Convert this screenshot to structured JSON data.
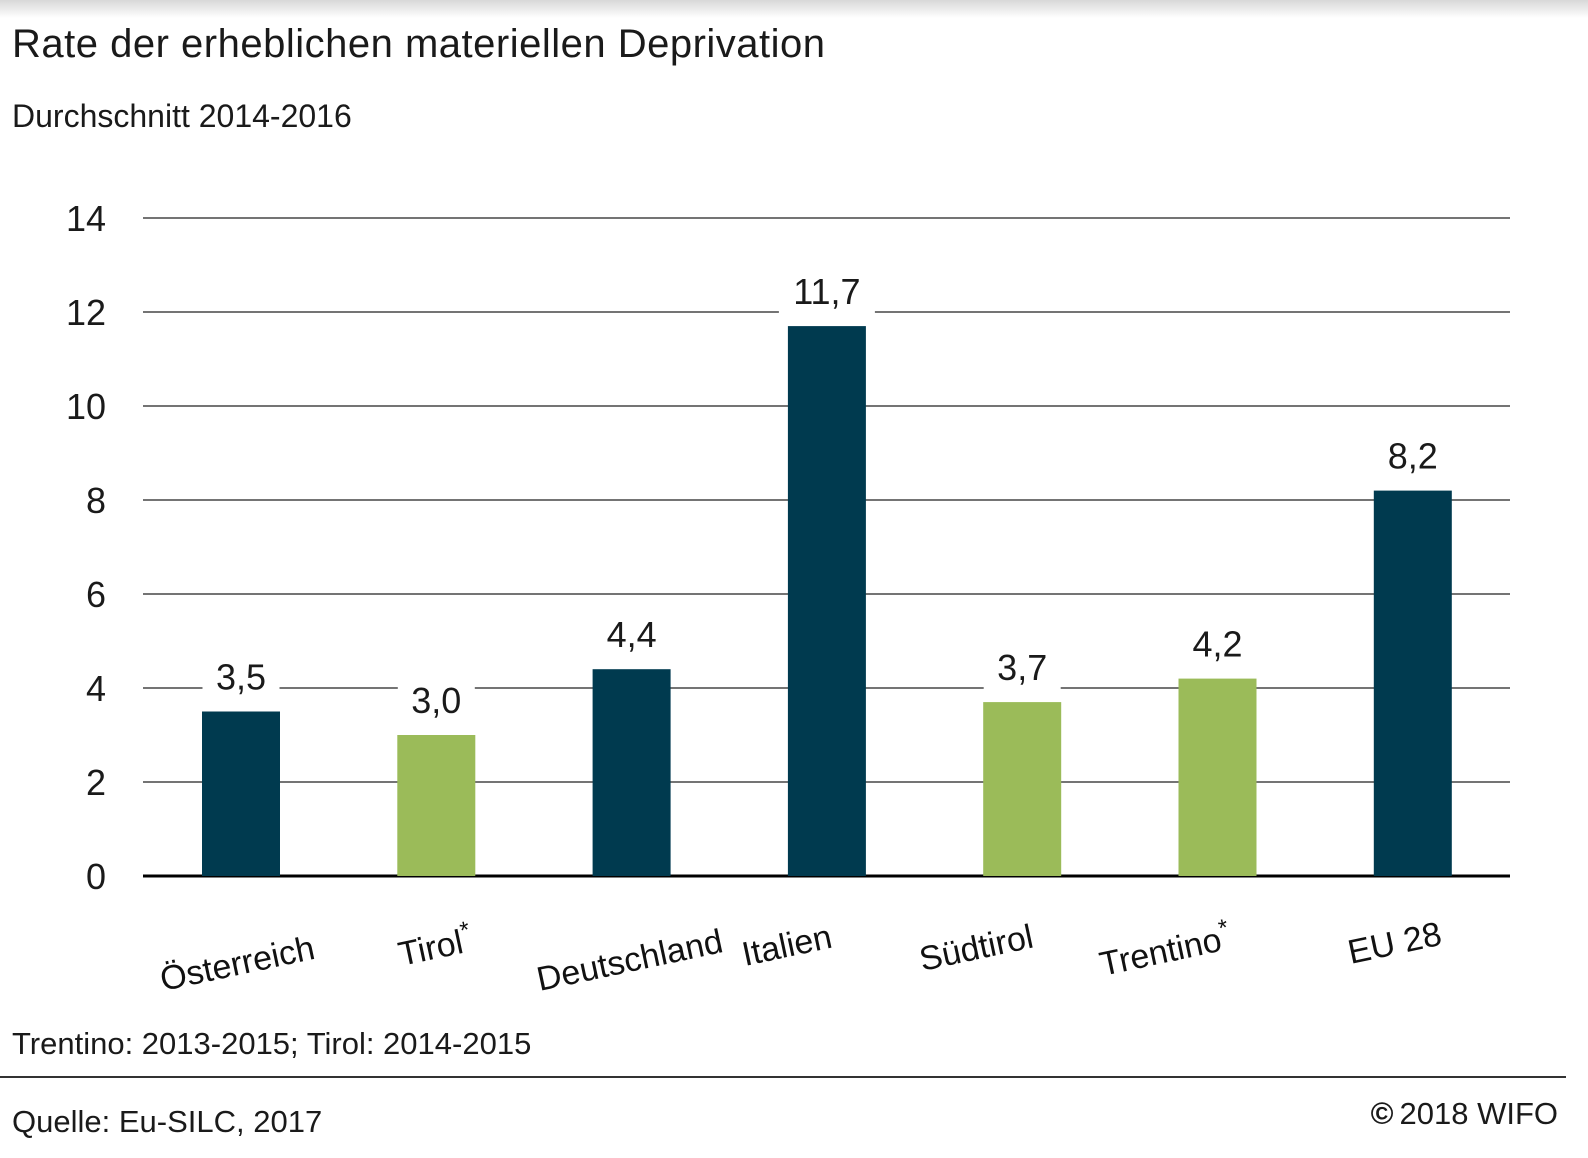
{
  "title": "Rate der erheblichen materiellen Deprivation",
  "subtitle": "Durchschnitt 2014-2016",
  "footnote": "Trentino: 2013-2015; Tirol: 2014-2015",
  "source": "Quelle: Eu-SILC, 2017",
  "copyright_symbol": "©",
  "copyright_text": "2018 WIFO",
  "colors": {
    "dark": "#003a4f",
    "green": "#9bbb59",
    "grid": "#222222"
  },
  "chart_data": {
    "type": "bar",
    "title": "Rate der erheblichen materiellen Deprivation",
    "subtitle": "Durchschnitt 2014-2016",
    "categories": [
      "Österreich",
      "Tirol*",
      "Deutschland",
      "Italien",
      "Südtirol",
      "Trentino*",
      "EU 28"
    ],
    "values": [
      3.5,
      3.0,
      4.4,
      11.7,
      3.7,
      4.2,
      8.2
    ],
    "value_labels": [
      "3,5",
      "3,0",
      "4,4",
      "11,7",
      "3,7",
      "4,2",
      "8,2"
    ],
    "bar_colors": [
      "dark",
      "green",
      "dark",
      "dark",
      "green",
      "green",
      "dark"
    ],
    "ylim": [
      0,
      14
    ],
    "yticks": [
      0,
      2,
      4,
      6,
      8,
      10,
      12,
      14
    ],
    "xlabel": "",
    "ylabel": "",
    "grid": true
  }
}
